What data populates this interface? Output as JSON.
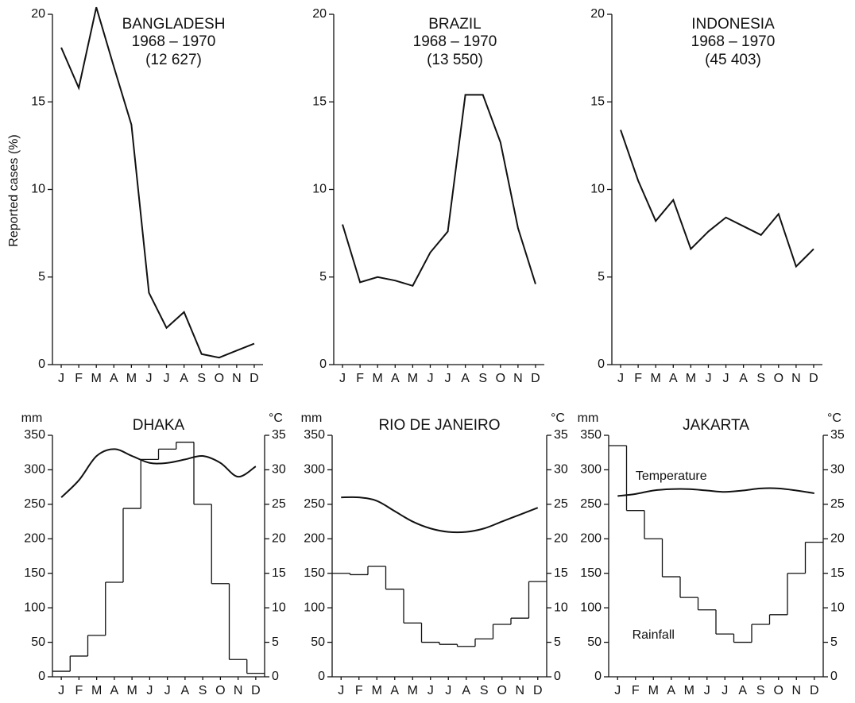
{
  "chart_data": [
    {
      "type": "line",
      "title": "BANGLADESH",
      "subtitle": "1968 – 1970",
      "annotation": "(12 627)",
      "ylabel": "Reported cases (%)",
      "categories": [
        "J",
        "F",
        "M",
        "A",
        "M",
        "J",
        "J",
        "A",
        "S",
        "O",
        "N",
        "D"
      ],
      "values": [
        18.1,
        15.8,
        20.4,
        17,
        13.7,
        4.1,
        2.1,
        3,
        0.6,
        0.4,
        0.8,
        1.2
      ],
      "color": "#111111",
      "ylim": [
        0,
        20
      ],
      "yticks": [
        0,
        5,
        10,
        15,
        20
      ]
    },
    {
      "type": "line",
      "title": "BRAZIL",
      "subtitle": "1968 – 1970",
      "annotation": "(13 550)",
      "categories": [
        "J",
        "F",
        "M",
        "A",
        "M",
        "J",
        "J",
        "A",
        "S",
        "O",
        "N",
        "D"
      ],
      "values": [
        8,
        4.7,
        5,
        4.8,
        4.5,
        6.4,
        7.6,
        15.4,
        15.4,
        12.7,
        7.8,
        4.6
      ],
      "color": "#111111",
      "ylim": [
        0,
        20
      ],
      "yticks": [
        0,
        5,
        10,
        15,
        20
      ]
    },
    {
      "type": "line",
      "title": "INDONESIA",
      "subtitle": "1968 – 1970",
      "annotation": "(45 403)",
      "categories": [
        "J",
        "F",
        "M",
        "A",
        "M",
        "J",
        "J",
        "A",
        "S",
        "O",
        "N",
        "D"
      ],
      "values": [
        13.4,
        10.5,
        8.2,
        9.4,
        6.6,
        7.6,
        8.4,
        7.9,
        7.4,
        8.6,
        5.6,
        6.6
      ],
      "color": "#111111",
      "ylim": [
        0,
        20
      ],
      "yticks": [
        0,
        5,
        10,
        15,
        20
      ]
    },
    {
      "type": "climate",
      "title": "DHAKA",
      "ylabel": "mm",
      "y2label": "°C",
      "categories": [
        "J",
        "F",
        "M",
        "A",
        "M",
        "J",
        "J",
        "A",
        "S",
        "O",
        "N",
        "D"
      ],
      "series": [
        {
          "color": "#111111",
          "values": [
            8,
            30,
            60,
            137,
            244,
            315,
            330,
            340,
            250,
            135,
            25,
            5
          ]
        },
        {
          "color": "#111111",
          "axis": "y2",
          "values": [
            26,
            28.5,
            32,
            33,
            32,
            31,
            31,
            31.5,
            32,
            31,
            29,
            30.5
          ]
        }
      ],
      "ylim": [
        0,
        350
      ],
      "yticks": [
        0,
        50,
        100,
        150,
        200,
        250,
        300,
        350
      ],
      "y2lim": [
        0,
        35
      ],
      "y2ticks": [
        0,
        5,
        10,
        15,
        20,
        25,
        30,
        35
      ]
    },
    {
      "type": "climate",
      "title": "RIO DE JANEIRO",
      "ylabel": "mm",
      "y2label": "°C",
      "categories": [
        "J",
        "F",
        "M",
        "A",
        "M",
        "J",
        "J",
        "A",
        "S",
        "O",
        "N",
        "D"
      ],
      "series": [
        {
          "color": "#111111",
          "values": [
            150,
            148,
            160,
            127,
            78,
            50,
            47,
            44,
            55,
            76,
            85,
            138
          ]
        },
        {
          "color": "#111111",
          "axis": "y2",
          "values": [
            26,
            26,
            25.5,
            24,
            22.5,
            21.5,
            21,
            21,
            21.5,
            22.5,
            23.5,
            24.5
          ]
        }
      ],
      "ylim": [
        0,
        350
      ],
      "yticks": [
        0,
        50,
        100,
        150,
        200,
        250,
        300,
        350
      ],
      "y2lim": [
        0,
        35
      ],
      "y2ticks": [
        0,
        5,
        10,
        15,
        20,
        25,
        30,
        35
      ]
    },
    {
      "type": "climate",
      "title": "JAKARTA",
      "ylabel": "mm",
      "y2label": "°C",
      "categories": [
        "J",
        "F",
        "M",
        "A",
        "M",
        "J",
        "J",
        "A",
        "S",
        "O",
        "N",
        "D"
      ],
      "series": [
        {
          "name": "Rainfall",
          "color": "#111111",
          "values": [
            335,
            241,
            200,
            145,
            115,
            97,
            62,
            50,
            76,
            90,
            150,
            195
          ]
        },
        {
          "name": "Temperature",
          "color": "#111111",
          "axis": "y2",
          "values": [
            26.2,
            26.5,
            27,
            27.2,
            27.2,
            27,
            26.8,
            27,
            27.3,
            27.3,
            27,
            26.6
          ]
        }
      ],
      "ylim": [
        0,
        350
      ],
      "yticks": [
        0,
        50,
        100,
        150,
        200,
        250,
        300,
        350
      ],
      "y2lim": [
        0,
        35
      ],
      "y2ticks": [
        0,
        5,
        10,
        15,
        20,
        25,
        30,
        35
      ]
    }
  ]
}
